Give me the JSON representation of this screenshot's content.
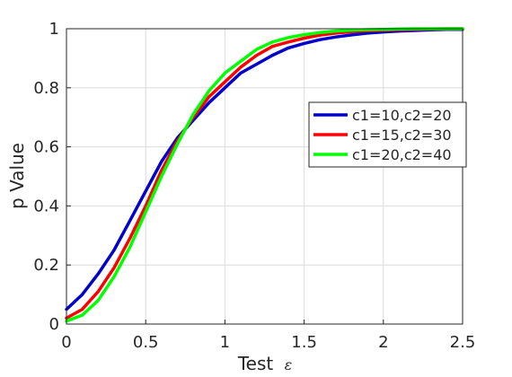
{
  "chart_data": {
    "type": "line",
    "xlabel_prefix": "Test",
    "xlabel_symbol": "ε",
    "ylabel": "p Value",
    "xlim": [
      0,
      2.5
    ],
    "ylim": [
      0,
      1
    ],
    "xticks": [
      0,
      0.5,
      1,
      1.5,
      2,
      2.5
    ],
    "xtick_labels": [
      "0",
      "0.5",
      "1",
      "1.5",
      "2",
      "2.5"
    ],
    "yticks": [
      0,
      0.2,
      0.4,
      0.6,
      0.8,
      1
    ],
    "ytick_labels": [
      "0",
      "0.2",
      "0.4",
      "0.6",
      "0.8",
      "1"
    ],
    "grid": true,
    "legend_position": "right",
    "x": [
      0,
      0.1,
      0.2,
      0.3,
      0.4,
      0.5,
      0.6,
      0.7,
      0.8,
      0.9,
      1.0,
      1.1,
      1.2,
      1.3,
      1.4,
      1.5,
      1.6,
      1.7,
      1.8,
      1.9,
      2.0,
      2.1,
      2.2,
      2.3,
      2.4,
      2.5
    ],
    "series": [
      {
        "name": "c1=10,c2=20",
        "color": "#0000cc",
        "values": [
          0.05,
          0.1,
          0.17,
          0.25,
          0.35,
          0.45,
          0.55,
          0.63,
          0.69,
          0.75,
          0.8,
          0.85,
          0.88,
          0.91,
          0.935,
          0.95,
          0.963,
          0.972,
          0.979,
          0.985,
          0.989,
          0.992,
          0.994,
          0.996,
          0.998,
          0.998
        ]
      },
      {
        "name": "c1=15,c2=30",
        "color": "#ff0000",
        "values": [
          0.02,
          0.05,
          0.11,
          0.19,
          0.29,
          0.4,
          0.52,
          0.62,
          0.7,
          0.77,
          0.82,
          0.87,
          0.91,
          0.94,
          0.955,
          0.968,
          0.978,
          0.985,
          0.99,
          0.993,
          0.995,
          0.997,
          0.998,
          0.999,
          1.0,
          1.0
        ]
      },
      {
        "name": "c1=20,c2=40",
        "color": "#00ff00",
        "values": [
          0.01,
          0.03,
          0.08,
          0.16,
          0.26,
          0.38,
          0.5,
          0.61,
          0.71,
          0.79,
          0.85,
          0.89,
          0.93,
          0.955,
          0.97,
          0.98,
          0.987,
          0.992,
          0.995,
          0.997,
          0.998,
          0.999,
          1.0,
          1.0,
          1.0,
          1.0
        ]
      }
    ]
  }
}
